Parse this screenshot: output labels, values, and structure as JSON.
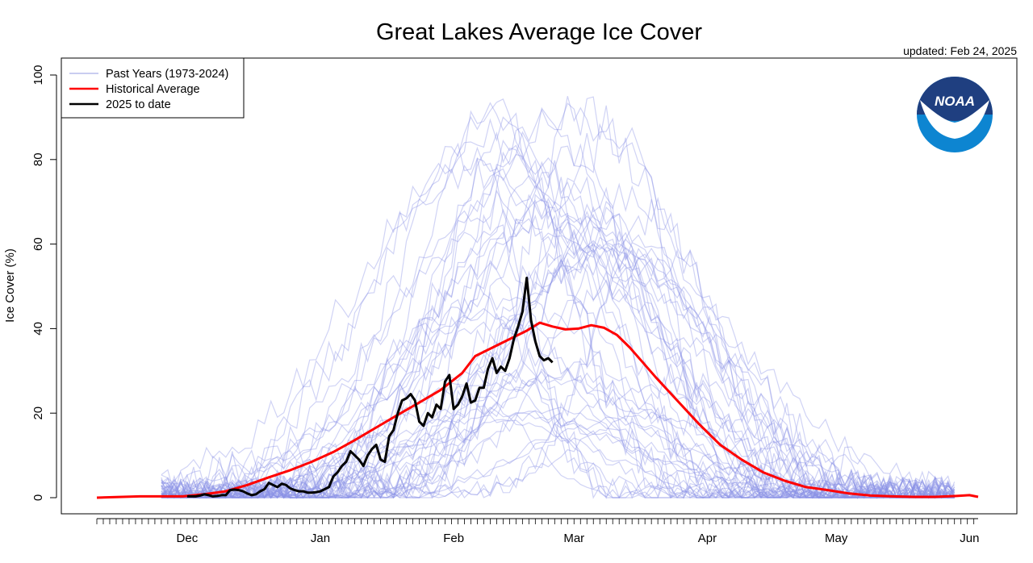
{
  "chart_data": {
    "type": "line",
    "title": "Great Lakes Average Ice Cover",
    "updated": "updated: Feb 24, 2025",
    "ylabel": "Ice Cover (%)",
    "xlabel": "",
    "ylim": [
      0,
      100
    ],
    "xlim": [
      "Nov 10",
      "Jun 10"
    ],
    "yticks": [
      0,
      20,
      40,
      60,
      80,
      100
    ],
    "xticks": [
      {
        "label": "Dec",
        "day": 21
      },
      {
        "label": "Jan",
        "day": 52
      },
      {
        "label": "Feb",
        "day": 83
      },
      {
        "label": "Mar",
        "day": 111
      },
      {
        "label": "Apr",
        "day": 142
      },
      {
        "label": "May",
        "day": 172
      },
      {
        "label": "Jun",
        "day": 203
      }
    ],
    "x_axis_note": "day = days since Nov 10",
    "grid": false,
    "legend_position": "top-left",
    "legend": [
      {
        "label": "Past Years (1973-2024)",
        "color": "#c9cdf0"
      },
      {
        "label": "Historical Average",
        "color": "#ff0000"
      },
      {
        "label": "2025 to date",
        "color": "#000000"
      }
    ],
    "logo": "NOAA",
    "series": [
      {
        "name": "Historical Average",
        "color": "#ff0000",
        "x": [
          0,
          10,
          20,
          25,
          30,
          35,
          40,
          45,
          50,
          55,
          60,
          65,
          70,
          75,
          80,
          85,
          88,
          92,
          95,
          100,
          103,
          106,
          109,
          112,
          115,
          118,
          121,
          124,
          127,
          130,
          135,
          140,
          145,
          150,
          155,
          160,
          165,
          170,
          175,
          180,
          185,
          190,
          195,
          200,
          203,
          205
        ],
        "y": [
          0,
          0.3,
          0.3,
          0.8,
          1.5,
          3,
          4.8,
          6.5,
          8.5,
          10.8,
          13.6,
          16.6,
          19.6,
          22.5,
          25.5,
          29.5,
          33.5,
          35.5,
          37,
          39.5,
          41.4,
          40.5,
          39.8,
          40,
          40.8,
          40.2,
          38.5,
          35.5,
          32,
          28.5,
          23,
          17.5,
          12.5,
          9,
          6,
          4,
          2.5,
          1.8,
          1,
          0.5,
          0.3,
          0.2,
          0.2,
          0.4,
          0.6,
          0.2
        ]
      },
      {
        "name": "2025 to date",
        "color": "#000000",
        "x": [
          21,
          22,
          23,
          24,
          25,
          26,
          27,
          28,
          29,
          30,
          31,
          32,
          33,
          34,
          35,
          36,
          37,
          38,
          39,
          40,
          41,
          42,
          43,
          44,
          45,
          46,
          47,
          48,
          49,
          50,
          51,
          52,
          53,
          54,
          55,
          56,
          57,
          58,
          59,
          60,
          61,
          62,
          63,
          64,
          65,
          66,
          67,
          68,
          69,
          70,
          71,
          72,
          73,
          74,
          75,
          76,
          77,
          78,
          79,
          80,
          81,
          82,
          83,
          84,
          85,
          86,
          87,
          88,
          89,
          90,
          91,
          92,
          93,
          94,
          95,
          96,
          97,
          98,
          99,
          100,
          101,
          102,
          103,
          104,
          105,
          106
        ],
        "y": [
          0.3,
          0.3,
          0.3,
          0.5,
          0.8,
          0.6,
          0.3,
          0.4,
          0.6,
          0.6,
          1.8,
          1.9,
          1.8,
          1.5,
          1.0,
          0.6,
          0.8,
          1.5,
          2.0,
          3.5,
          3.0,
          2.5,
          3.3,
          3.0,
          2.2,
          1.8,
          1.5,
          1.5,
          1.2,
          1.2,
          1.3,
          1.5,
          2.0,
          2.5,
          5.0,
          6.0,
          7.5,
          8.5,
          11.0,
          10.0,
          9.0,
          7.5,
          10.0,
          11.5,
          12.5,
          9.0,
          8.5,
          14.5,
          16.0,
          20.0,
          23.0,
          23.5,
          24.5,
          23.0,
          18.0,
          17.0,
          20.0,
          19.0,
          22.0,
          21.0,
          27.5,
          29.0,
          21.0,
          22.0,
          24.0,
          27.0,
          22.5,
          23.0,
          26.0,
          26.0,
          30.5,
          33.0,
          29.5,
          31.0,
          30.0,
          33.0,
          37.5,
          40.5,
          44.0,
          52.0,
          42.0,
          37.0,
          33.5,
          32.5,
          33.0,
          32.0
        ]
      }
    ],
    "past_years_count": 52
  }
}
